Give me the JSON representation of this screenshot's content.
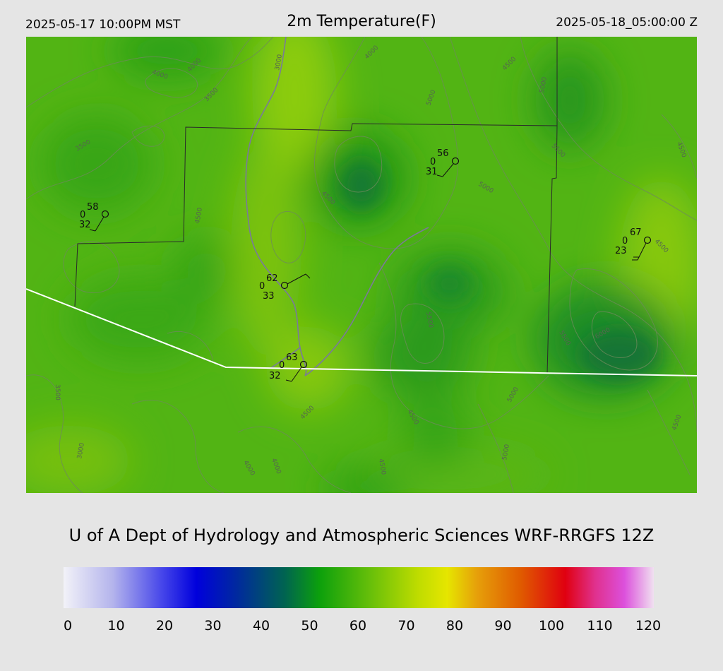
{
  "header": {
    "local_time": "2025-05-17 10:00PM MST",
    "title": "2m Temperature(F)",
    "valid_time": "2025-05-18_05:00:00 Z"
  },
  "footer": {
    "credit": "U of A Dept of Hydrology and Atmospheric Sciences WRF-RRGFS 12Z"
  },
  "colorbar": {
    "ticks": [
      "0",
      "10",
      "20",
      "30",
      "40",
      "50",
      "60",
      "70",
      "80",
      "90",
      "100",
      "110",
      "120"
    ],
    "min": 0,
    "max": 120,
    "stops": [
      {
        "v": 0,
        "c": "#f2f2f8"
      },
      {
        "v": 10,
        "c": "#b4b4ec"
      },
      {
        "v": 20,
        "c": "#4646ea"
      },
      {
        "v": 27,
        "c": "#0000dc"
      },
      {
        "v": 35,
        "c": "#0028a0"
      },
      {
        "v": 45,
        "c": "#006450"
      },
      {
        "v": 52,
        "c": "#0ca00c"
      },
      {
        "v": 62,
        "c": "#64be0a"
      },
      {
        "v": 72,
        "c": "#bedc00"
      },
      {
        "v": 78,
        "c": "#e6e600"
      },
      {
        "v": 84,
        "c": "#e6a00a"
      },
      {
        "v": 93,
        "c": "#e05a00"
      },
      {
        "v": 102,
        "c": "#e00010"
      },
      {
        "v": 108,
        "c": "#e0308c"
      },
      {
        "v": 114,
        "c": "#dc50dc"
      },
      {
        "v": 120,
        "c": "#f0e0f0"
      }
    ]
  },
  "contour_labels": [
    "3000",
    "3500",
    "4000",
    "4500",
    "5000",
    "5500",
    "6000"
  ],
  "stations": [
    {
      "temp": "58",
      "gust": "0",
      "dew": "32"
    },
    {
      "temp": "56",
      "gust": "0",
      "dew": "31"
    },
    {
      "temp": "62",
      "gust": "0",
      "dew": "33"
    },
    {
      "temp": "63",
      "gust": "0",
      "dew": "32"
    },
    {
      "temp": "67",
      "gust": "0",
      "dew": "23"
    }
  ]
}
